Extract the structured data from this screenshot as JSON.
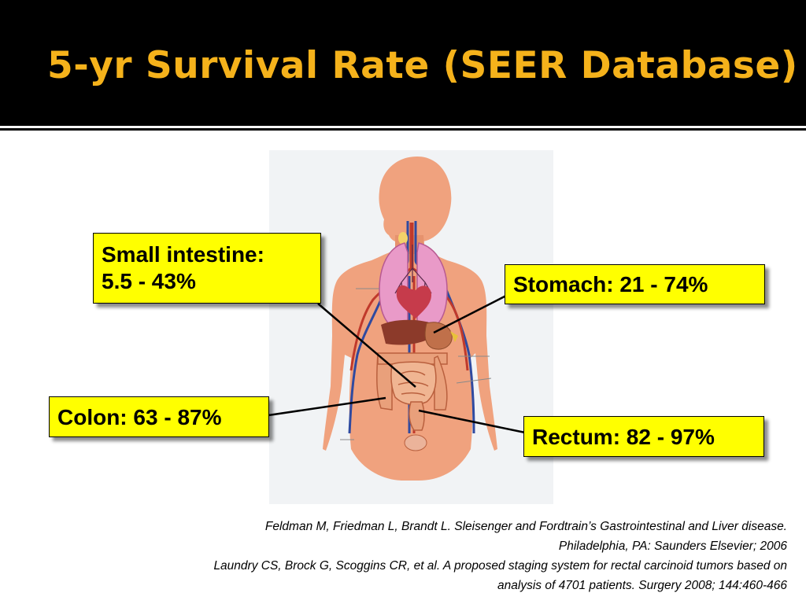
{
  "slide": {
    "title": "5-yr Survival Rate (SEER Database)",
    "colors": {
      "title": "#f5b21b",
      "background": "#000000",
      "callout_fill": "#ffff00",
      "body_skin": "#f0a27e",
      "lungs": "#e99ac8",
      "vessels_red": "#c0392b",
      "vessels_blue": "#2f4aa0",
      "intestines": "#e9a07b"
    }
  },
  "callouts": {
    "small_intestine": {
      "line1": "Small intestine:",
      "line2": "5.5 - 43%"
    },
    "stomach": {
      "text": "Stomach: 21 - 74%"
    },
    "colon": {
      "text": "Colon: 63 - 87%"
    },
    "rectum": {
      "text": "Rectum: 82 - 97%"
    }
  },
  "citations": [
    "Feldman M, Friedman L, Brandt L. Sleisenger and Fordtrain’s Gastrointestinal and Liver disease.",
    "Philadelphia, PA: Saunders Elsevier; 2006",
    "Laundry CS, Brock G, Scoggins CR, et al. A proposed staging system for rectal carcinoid tumors based on",
    "analysis of 4701 patients. Surgery 2008; 144:460-466"
  ]
}
